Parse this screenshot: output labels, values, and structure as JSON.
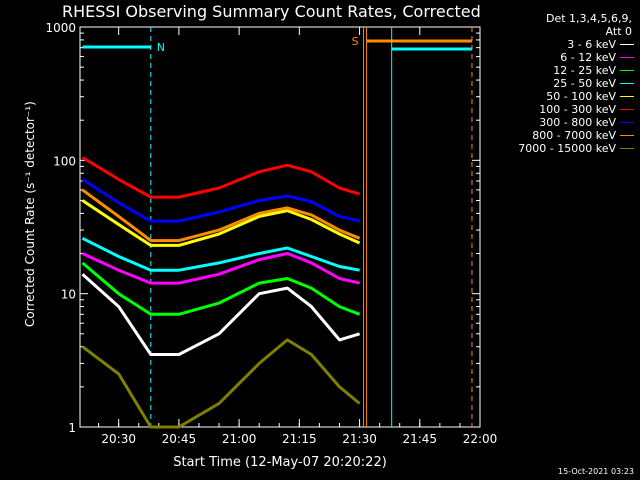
{
  "chart_data": {
    "type": "line",
    "title": "RHESSI Observing Summary Count Rates, Corrected",
    "xlabel": "Start Time (12-May-07 20:20:22)",
    "ylabel": "Corrected Count Rate (s⁻¹ detector⁻¹)",
    "yscale": "log",
    "ylim": [
      1,
      1000
    ],
    "xlim": [
      "20:20:22",
      "22:00"
    ],
    "x_ticks": [
      "20:30",
      "20:45",
      "21:00",
      "21:15",
      "21:30",
      "21:45",
      "22:00"
    ],
    "y_ticks": [
      "1",
      "10",
      "100",
      "1000"
    ],
    "legend_header": [
      "Det 1,3,4,5,6,9,",
      "Att 0"
    ],
    "legend_position": "right",
    "series": [
      {
        "name": "3 - 6 keV",
        "color": "#ffffff",
        "x": [
          "20:21",
          "20:30",
          "20:38",
          "20:45",
          "20:55",
          "21:05",
          "21:12",
          "21:18",
          "21:25",
          "21:30"
        ],
        "values": [
          14,
          8,
          3.5,
          3.5,
          5,
          10,
          11,
          8,
          4.5,
          5
        ]
      },
      {
        "name": "6 - 12 keV",
        "color": "#ff00ff",
        "x": [
          "20:21",
          "20:30",
          "20:38",
          "20:45",
          "20:55",
          "21:05",
          "21:12",
          "21:18",
          "21:25",
          "21:30"
        ],
        "values": [
          20,
          15,
          12,
          12,
          14,
          18,
          20,
          17,
          13,
          12
        ]
      },
      {
        "name": "12 - 25 keV",
        "color": "#00ff00",
        "x": [
          "20:21",
          "20:30",
          "20:38",
          "20:45",
          "20:55",
          "21:05",
          "21:12",
          "21:18",
          "21:25",
          "21:30"
        ],
        "values": [
          17,
          10,
          7,
          7,
          8.5,
          12,
          13,
          11,
          8,
          7
        ]
      },
      {
        "name": "25 - 50 keV",
        "color": "#00ffff",
        "x": [
          "20:21",
          "20:30",
          "20:38",
          "20:45",
          "20:55",
          "21:05",
          "21:12",
          "21:18",
          "21:25",
          "21:30"
        ],
        "values": [
          26,
          19,
          15,
          15,
          17,
          20,
          22,
          19,
          16,
          15
        ]
      },
      {
        "name": "50 - 100 keV",
        "color": "#ffff00",
        "x": [
          "20:21",
          "20:30",
          "20:38",
          "20:45",
          "20:55",
          "21:05",
          "21:12",
          "21:18",
          "21:25",
          "21:30"
        ],
        "values": [
          50,
          33,
          23,
          23,
          28,
          38,
          42,
          36,
          28,
          24
        ]
      },
      {
        "name": "100 - 300 keV",
        "color": "#ff0000",
        "x": [
          "20:21",
          "20:30",
          "20:38",
          "20:45",
          "20:55",
          "21:05",
          "21:12",
          "21:18",
          "21:25",
          "21:30"
        ],
        "values": [
          105,
          72,
          53,
          53,
          62,
          82,
          92,
          82,
          62,
          56
        ]
      },
      {
        "name": "300 - 800 keV",
        "color": "#0000ff",
        "x": [
          "20:21",
          "20:30",
          "20:38",
          "20:45",
          "20:55",
          "21:05",
          "21:12",
          "21:18",
          "21:25",
          "21:30"
        ],
        "values": [
          72,
          48,
          35,
          35,
          41,
          50,
          54,
          49,
          38,
          35
        ]
      },
      {
        "name": "800 - 7000 keV",
        "color": "#ff8c00",
        "x": [
          "20:21",
          "20:30",
          "20:38",
          "20:45",
          "20:55",
          "21:05",
          "21:12",
          "21:18",
          "21:25",
          "21:30"
        ],
        "values": [
          60,
          38,
          25,
          25,
          30,
          40,
          44,
          39,
          30,
          26
        ]
      },
      {
        "name": "7000 - 15000 keV",
        "color": "#808000",
        "x": [
          "20:21",
          "20:30",
          "20:38",
          "20:45",
          "20:55",
          "21:05",
          "21:12",
          "21:18",
          "21:25",
          "21:30"
        ],
        "values": [
          4,
          2.5,
          1,
          1,
          1.5,
          3,
          4.5,
          3.5,
          2,
          1.5
        ]
      }
    ],
    "annotations": [
      {
        "text": "N",
        "color": "#00ffff"
      },
      {
        "text": "S",
        "color": "#ff8c00"
      }
    ],
    "grid": false
  },
  "timestamp": "15-Oct-2021 03:23"
}
